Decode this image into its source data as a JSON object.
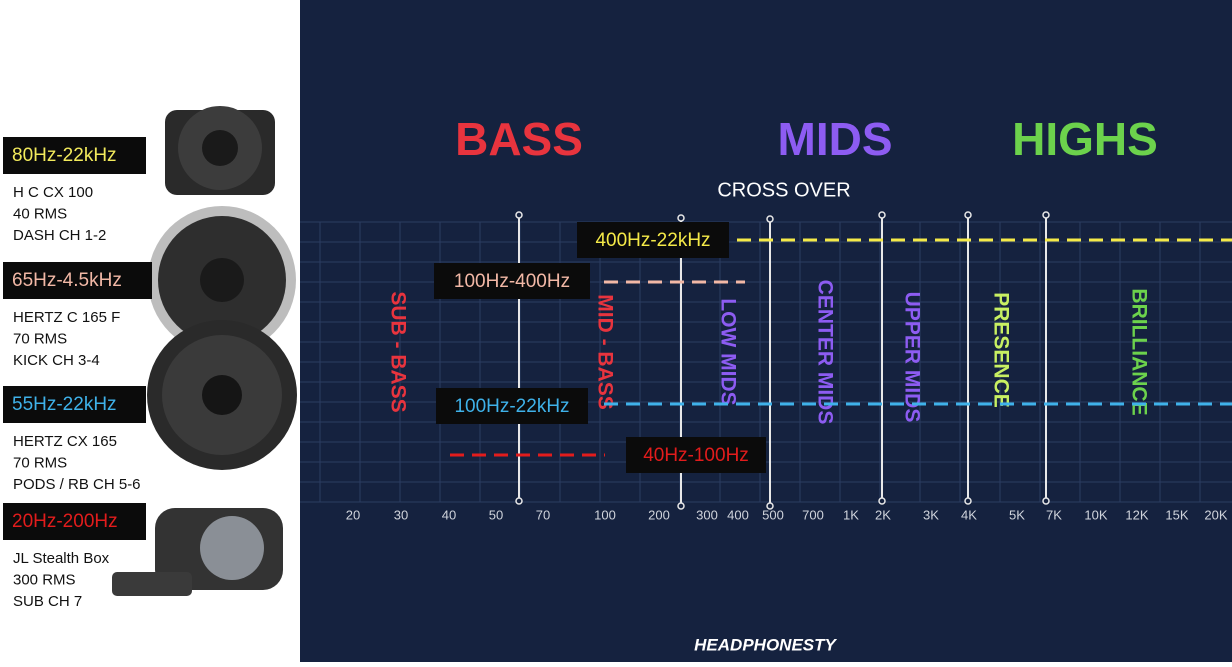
{
  "speakers": [
    {
      "range": "80Hz-22kHz",
      "range_color": "#f2ea5c",
      "lines": [
        "H C CX 100",
        "40 RMS",
        "DASH CH 1-2"
      ]
    },
    {
      "range": "65Hz-4.5kHz",
      "range_color": "#f2b8a6",
      "lines": [
        "HERTZ C 165 F",
        "70 RMS",
        "KICK CH 3-4"
      ]
    },
    {
      "range": "55Hz-22kHz",
      "range_color": "#3fb2ea",
      "lines": [
        "HERTZ CX 165",
        "70 RMS",
        "PODS / RB CH 5-6"
      ]
    },
    {
      "range": "20Hz-200Hz",
      "range_color": "#e21c1c",
      "lines": [
        "JL Stealth Box",
        "300 RMS",
        "SUB CH 7"
      ]
    }
  ],
  "headers": [
    {
      "text": "BASS",
      "color": "#e8343e"
    },
    {
      "text": "MIDS",
      "color": "#8d5cf2"
    },
    {
      "text": "HIGHS",
      "color": "#6cd24c"
    }
  ],
  "crossover_title": "CROSS OVER",
  "crossovers": [
    {
      "label": "400Hz-22kHz",
      "color": "#f5ea48"
    },
    {
      "label": "100Hz-400Hz",
      "color": "#f2b8a6"
    },
    {
      "label": "100Hz-22kHz",
      "color": "#3fb2ea"
    },
    {
      "label": "40Hz-100Hz",
      "color": "#e21c1c"
    }
  ],
  "bands": [
    {
      "label": "SUB - BASS",
      "color": "#e8343e"
    },
    {
      "label": "MID - BASS",
      "color": "#e8343e"
    },
    {
      "label": "LOW MIDS",
      "color": "#8d5cf2"
    },
    {
      "label": "CENTER MIDS",
      "color": "#8d5cf2"
    },
    {
      "label": "UPPER MIDS",
      "color": "#8d5cf2"
    },
    {
      "label": "PRESENCE",
      "color": "#c8f062"
    },
    {
      "label": "BRILLIANCE",
      "color": "#6cd24c"
    }
  ],
  "frequency_labels": [
    "20",
    "30",
    "40",
    "50",
    "70",
    "100",
    "200",
    "300",
    "400",
    "500",
    "700",
    "1K",
    "2K",
    "3K",
    "4K",
    "5K",
    "7K",
    "10K",
    "12K",
    "15K",
    "20K"
  ],
  "watermark": "HEADPHONESTY"
}
